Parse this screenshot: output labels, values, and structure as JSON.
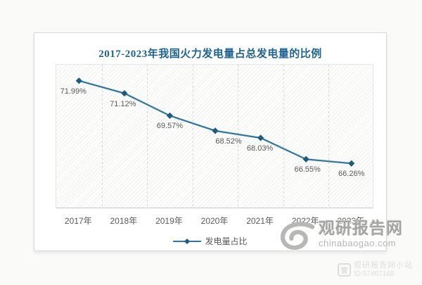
{
  "page_background": "#fafaf8",
  "chart_data": {
    "type": "line",
    "title": "2017-2023年我国火力发电量占总发电量的比例",
    "categories": [
      "2017年",
      "2018年",
      "2019年",
      "2020年",
      "2021年",
      "2022年",
      "2023年"
    ],
    "series": [
      {
        "name": "发电量占比",
        "values": [
          71.99,
          71.12,
          69.57,
          68.52,
          68.03,
          66.55,
          66.26
        ]
      }
    ],
    "point_labels": [
      "71.99%",
      "71.12%",
      "69.57%",
      "68.52%",
      "68.03%",
      "66.55%",
      "66.26%"
    ],
    "xlabel": "",
    "ylabel": "",
    "ylim": [
      63.1,
      73.1
    ],
    "grid": "vertical-dashed",
    "legend_position": "bottom",
    "colors": {
      "line": "#2f7aa3",
      "marker": "#1e5c7e",
      "title": "#1e6493",
      "labels": "#595959",
      "gridline": "#d9d9d9",
      "axis": "#c6c6c6"
    }
  },
  "watermark_main": {
    "brand": "观研报告网",
    "site": "chinabaogao.com",
    "logo": "swirl-eye-logo"
  },
  "watermark_corner": {
    "line1": "观研报告网小站",
    "line2": "ID:57467168",
    "icon": "site-badge-icon",
    "icon_glyph": "官"
  }
}
